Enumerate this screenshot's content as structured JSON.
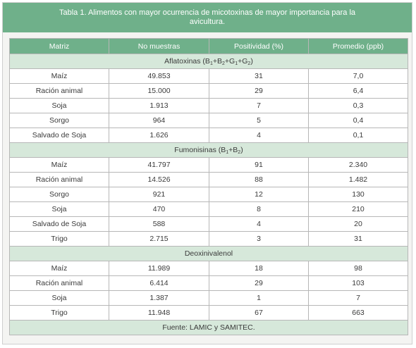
{
  "title": "Tabla 1. Alimentos con mayor ocurrencia de micotoxinas de mayor importancia para la avicultura.",
  "columns": [
    "Matriz",
    "No muestras",
    "Positividad (%)",
    "Promedio (ppb)"
  ],
  "sections": [
    {
      "name_parts": [
        "Aflatoxinas (B",
        "1",
        "+B",
        "2",
        "+G",
        "1",
        "+G",
        "2",
        ")"
      ],
      "rows": [
        [
          "Maíz",
          "49.853",
          "31",
          "7,0"
        ],
        [
          "Ración animal",
          "15.000",
          "29",
          "6,4"
        ],
        [
          "Soja",
          "1.913",
          "7",
          "0,3"
        ],
        [
          "Sorgo",
          "964",
          "5",
          "0,4"
        ],
        [
          "Salvado de Soja",
          "1.626",
          "4",
          "0,1"
        ]
      ]
    },
    {
      "name_parts": [
        "Fumonisinas (B",
        "1",
        "+B",
        "2",
        ")"
      ],
      "rows": [
        [
          "Maíz",
          "41.797",
          "91",
          "2.340"
        ],
        [
          "Ración animal",
          "14.526",
          "88",
          "1.482"
        ],
        [
          "Sorgo",
          "921",
          "12",
          "130"
        ],
        [
          "Soja",
          "470",
          "8",
          "210"
        ],
        [
          "Salvado de Soja",
          "588",
          "4",
          "20"
        ],
        [
          "Trigo",
          "2.715",
          "3",
          "31"
        ]
      ]
    },
    {
      "name_parts": [
        "Deoxinivalenol"
      ],
      "rows": [
        [
          "Maíz",
          "11.989",
          "18",
          "98"
        ],
        [
          "Ración animal",
          "6.414",
          "29",
          "103"
        ],
        [
          "Soja",
          "1.387",
          "1",
          "7"
        ],
        [
          "Trigo",
          "11.948",
          "67",
          "663"
        ]
      ]
    }
  ],
  "footer": "Fuente: LAMIC y SAMITEC.",
  "colors": {
    "header_bg": "#6fb08a",
    "section_bg": "#d6e8da",
    "frame_bg": "#f4f4f2",
    "border": "#b7b7b7"
  }
}
